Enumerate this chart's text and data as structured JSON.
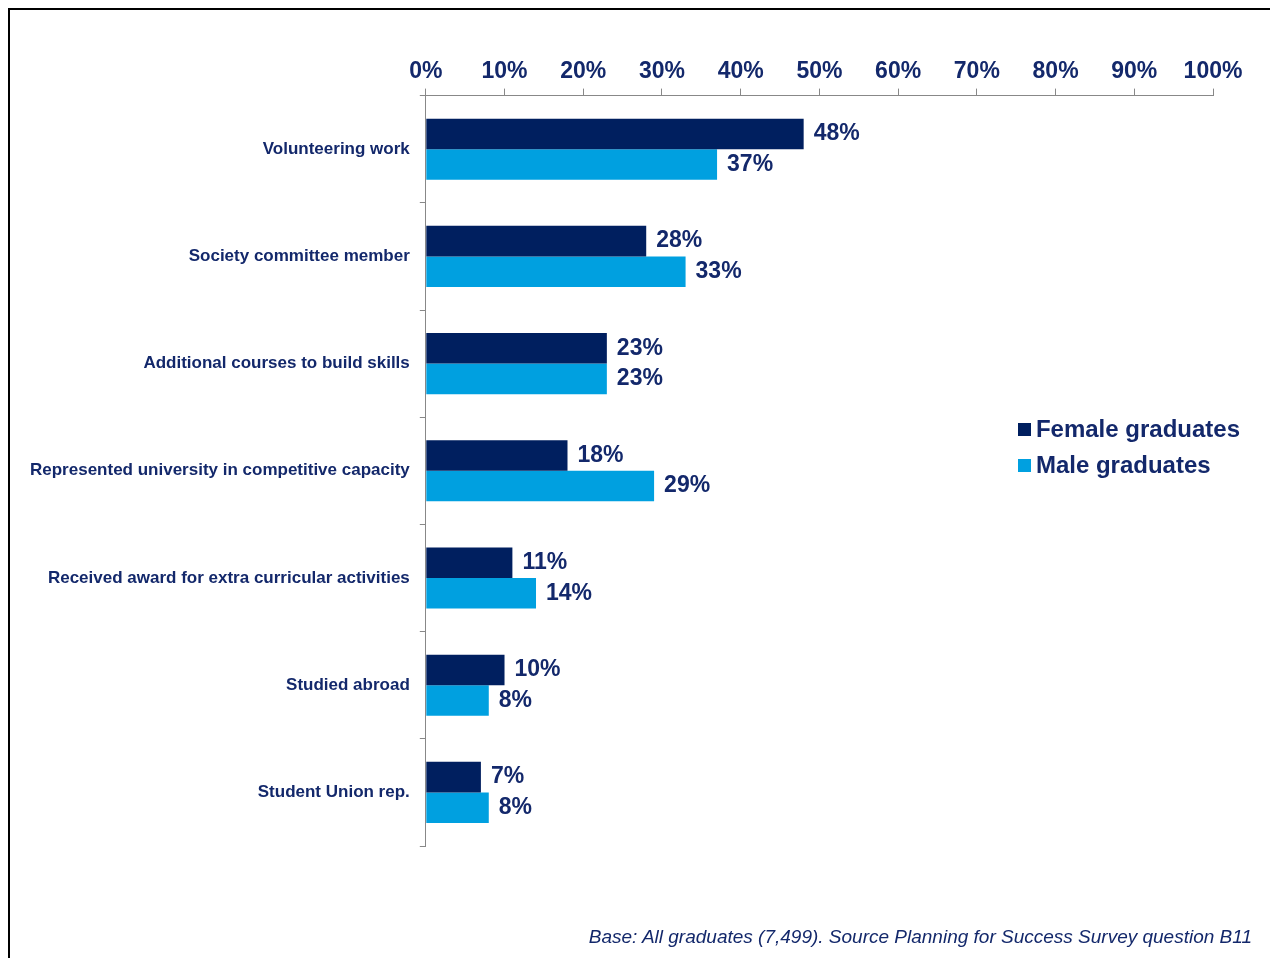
{
  "chart_data": {
    "type": "bar",
    "orientation": "horizontal",
    "categories": [
      "Volunteering work",
      "Society committee member",
      "Additional courses to build skills",
      "Represented university in competitive capacity",
      "Received award for extra curricular activities",
      "Studied abroad",
      "Student Union rep."
    ],
    "series": [
      {
        "name": "Female graduates",
        "color": "#001f5f",
        "values": [
          48,
          28,
          23,
          18,
          11,
          10,
          7
        ],
        "value_labels": [
          "48%",
          "28%",
          "23%",
          "18%",
          "11%",
          "10%",
          "7%"
        ]
      },
      {
        "name": "Male graduates",
        "color": "#00a0e0",
        "values": [
          37,
          33,
          23,
          29,
          14,
          8,
          8
        ],
        "value_labels": [
          "37%",
          "33%",
          "23%",
          "29%",
          "14%",
          "8%",
          "8%"
        ]
      }
    ],
    "xlim": [
      0,
      100
    ],
    "xticks": [
      {
        "value": 0,
        "label": "0%"
      },
      {
        "value": 10,
        "label": "10%"
      },
      {
        "value": 20,
        "label": "20%"
      },
      {
        "value": 30,
        "label": "30%"
      },
      {
        "value": 40,
        "label": "40%"
      },
      {
        "value": 50,
        "label": "50%"
      },
      {
        "value": 60,
        "label": "60%"
      },
      {
        "value": 70,
        "label": "70%"
      },
      {
        "value": 80,
        "label": "80%"
      },
      {
        "value": 90,
        "label": "90%"
      },
      {
        "value": 100,
        "label": "100%"
      }
    ],
    "grid": false,
    "legend": "right",
    "annotations": [
      "Base: All graduates (7,499). Source Planning for Success Survey question B11"
    ]
  }
}
